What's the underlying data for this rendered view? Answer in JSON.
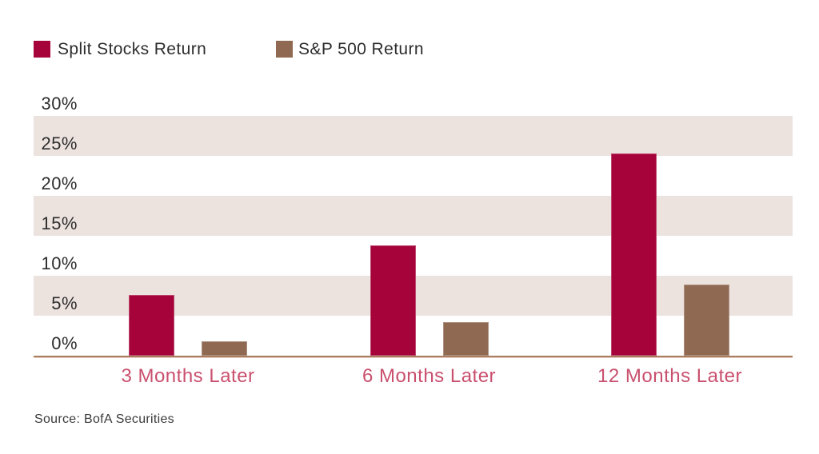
{
  "legend": [
    {
      "label": "Split Stocks Return",
      "color": "#a50339"
    },
    {
      "label": "S&P 500 Return",
      "color": "#8f6951"
    }
  ],
  "chart_data": {
    "type": "bar",
    "title": "",
    "categories": [
      "3 Months Later",
      "6 Months Later",
      "12 Months Later"
    ],
    "series": [
      {
        "name": "Split Stocks Return",
        "color": "#a50339",
        "values": [
          7.6,
          13.8,
          25.3
        ]
      },
      {
        "name": "S&P 500 Return",
        "color": "#8f6951",
        "values": [
          1.8,
          4.2,
          8.9
        ]
      }
    ],
    "xlabel": "",
    "ylabel": "",
    "ylim": [
      0,
      30
    ],
    "y_tick_step": 5,
    "y_tick_labels": [
      "30%",
      "25%",
      "20%",
      "15%",
      "10%",
      "5%",
      "0%"
    ],
    "grid_bands_pct": [
      [
        25,
        30
      ],
      [
        15,
        20
      ],
      [
        5,
        10
      ]
    ],
    "grid_band_color": "#ece3df",
    "axis_line_color": "#a97e60",
    "axis_line_shadow_color": "#ead0c4",
    "category_label_color": "#c9506e",
    "legend_position": "top-left",
    "legend_text_color": "#2d2d2d"
  },
  "source": {
    "text": "Source: BofA Securities"
  }
}
